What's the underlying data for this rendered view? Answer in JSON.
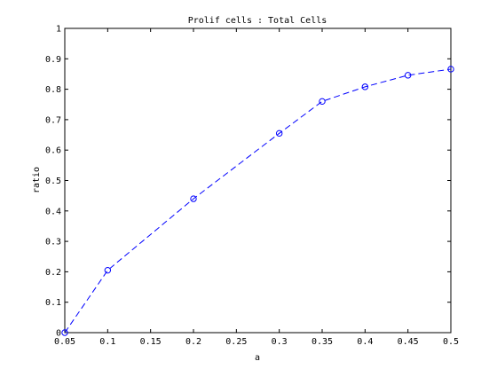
{
  "chart_data": {
    "type": "line",
    "title": "Prolif cells : Total Cells",
    "xlabel": "a",
    "ylabel": "ratio",
    "xlim": [
      0.05,
      0.5
    ],
    "ylim": [
      0,
      1
    ],
    "xticks": [
      0.05,
      0.1,
      0.15,
      0.2,
      0.25,
      0.3,
      0.35,
      0.4,
      0.45,
      0.5
    ],
    "xtick_labels": [
      "0.05",
      "0.1",
      "0.15",
      "0.2",
      "0.25",
      "0.3",
      "0.35",
      "0.4",
      "0.45",
      "0.5"
    ],
    "yticks": [
      0,
      0.1,
      0.2,
      0.3,
      0.4,
      0.5,
      0.6,
      0.7,
      0.8,
      0.9,
      1
    ],
    "ytick_labels": [
      "0",
      "0.1",
      "0.2",
      "0.3",
      "0.4",
      "0.5",
      "0.6",
      "0.7",
      "0.8",
      "0.9",
      "1"
    ],
    "grid": false,
    "series": [
      {
        "x": [
          0.05,
          0.1,
          0.2,
          0.3,
          0.35,
          0.4,
          0.45,
          0.5
        ],
        "y": [
          0.0,
          0.205,
          0.44,
          0.655,
          0.76,
          0.808,
          0.846,
          0.866
        ],
        "color": "#0000ff",
        "line_style": "dashed",
        "marker": "circle"
      }
    ]
  }
}
